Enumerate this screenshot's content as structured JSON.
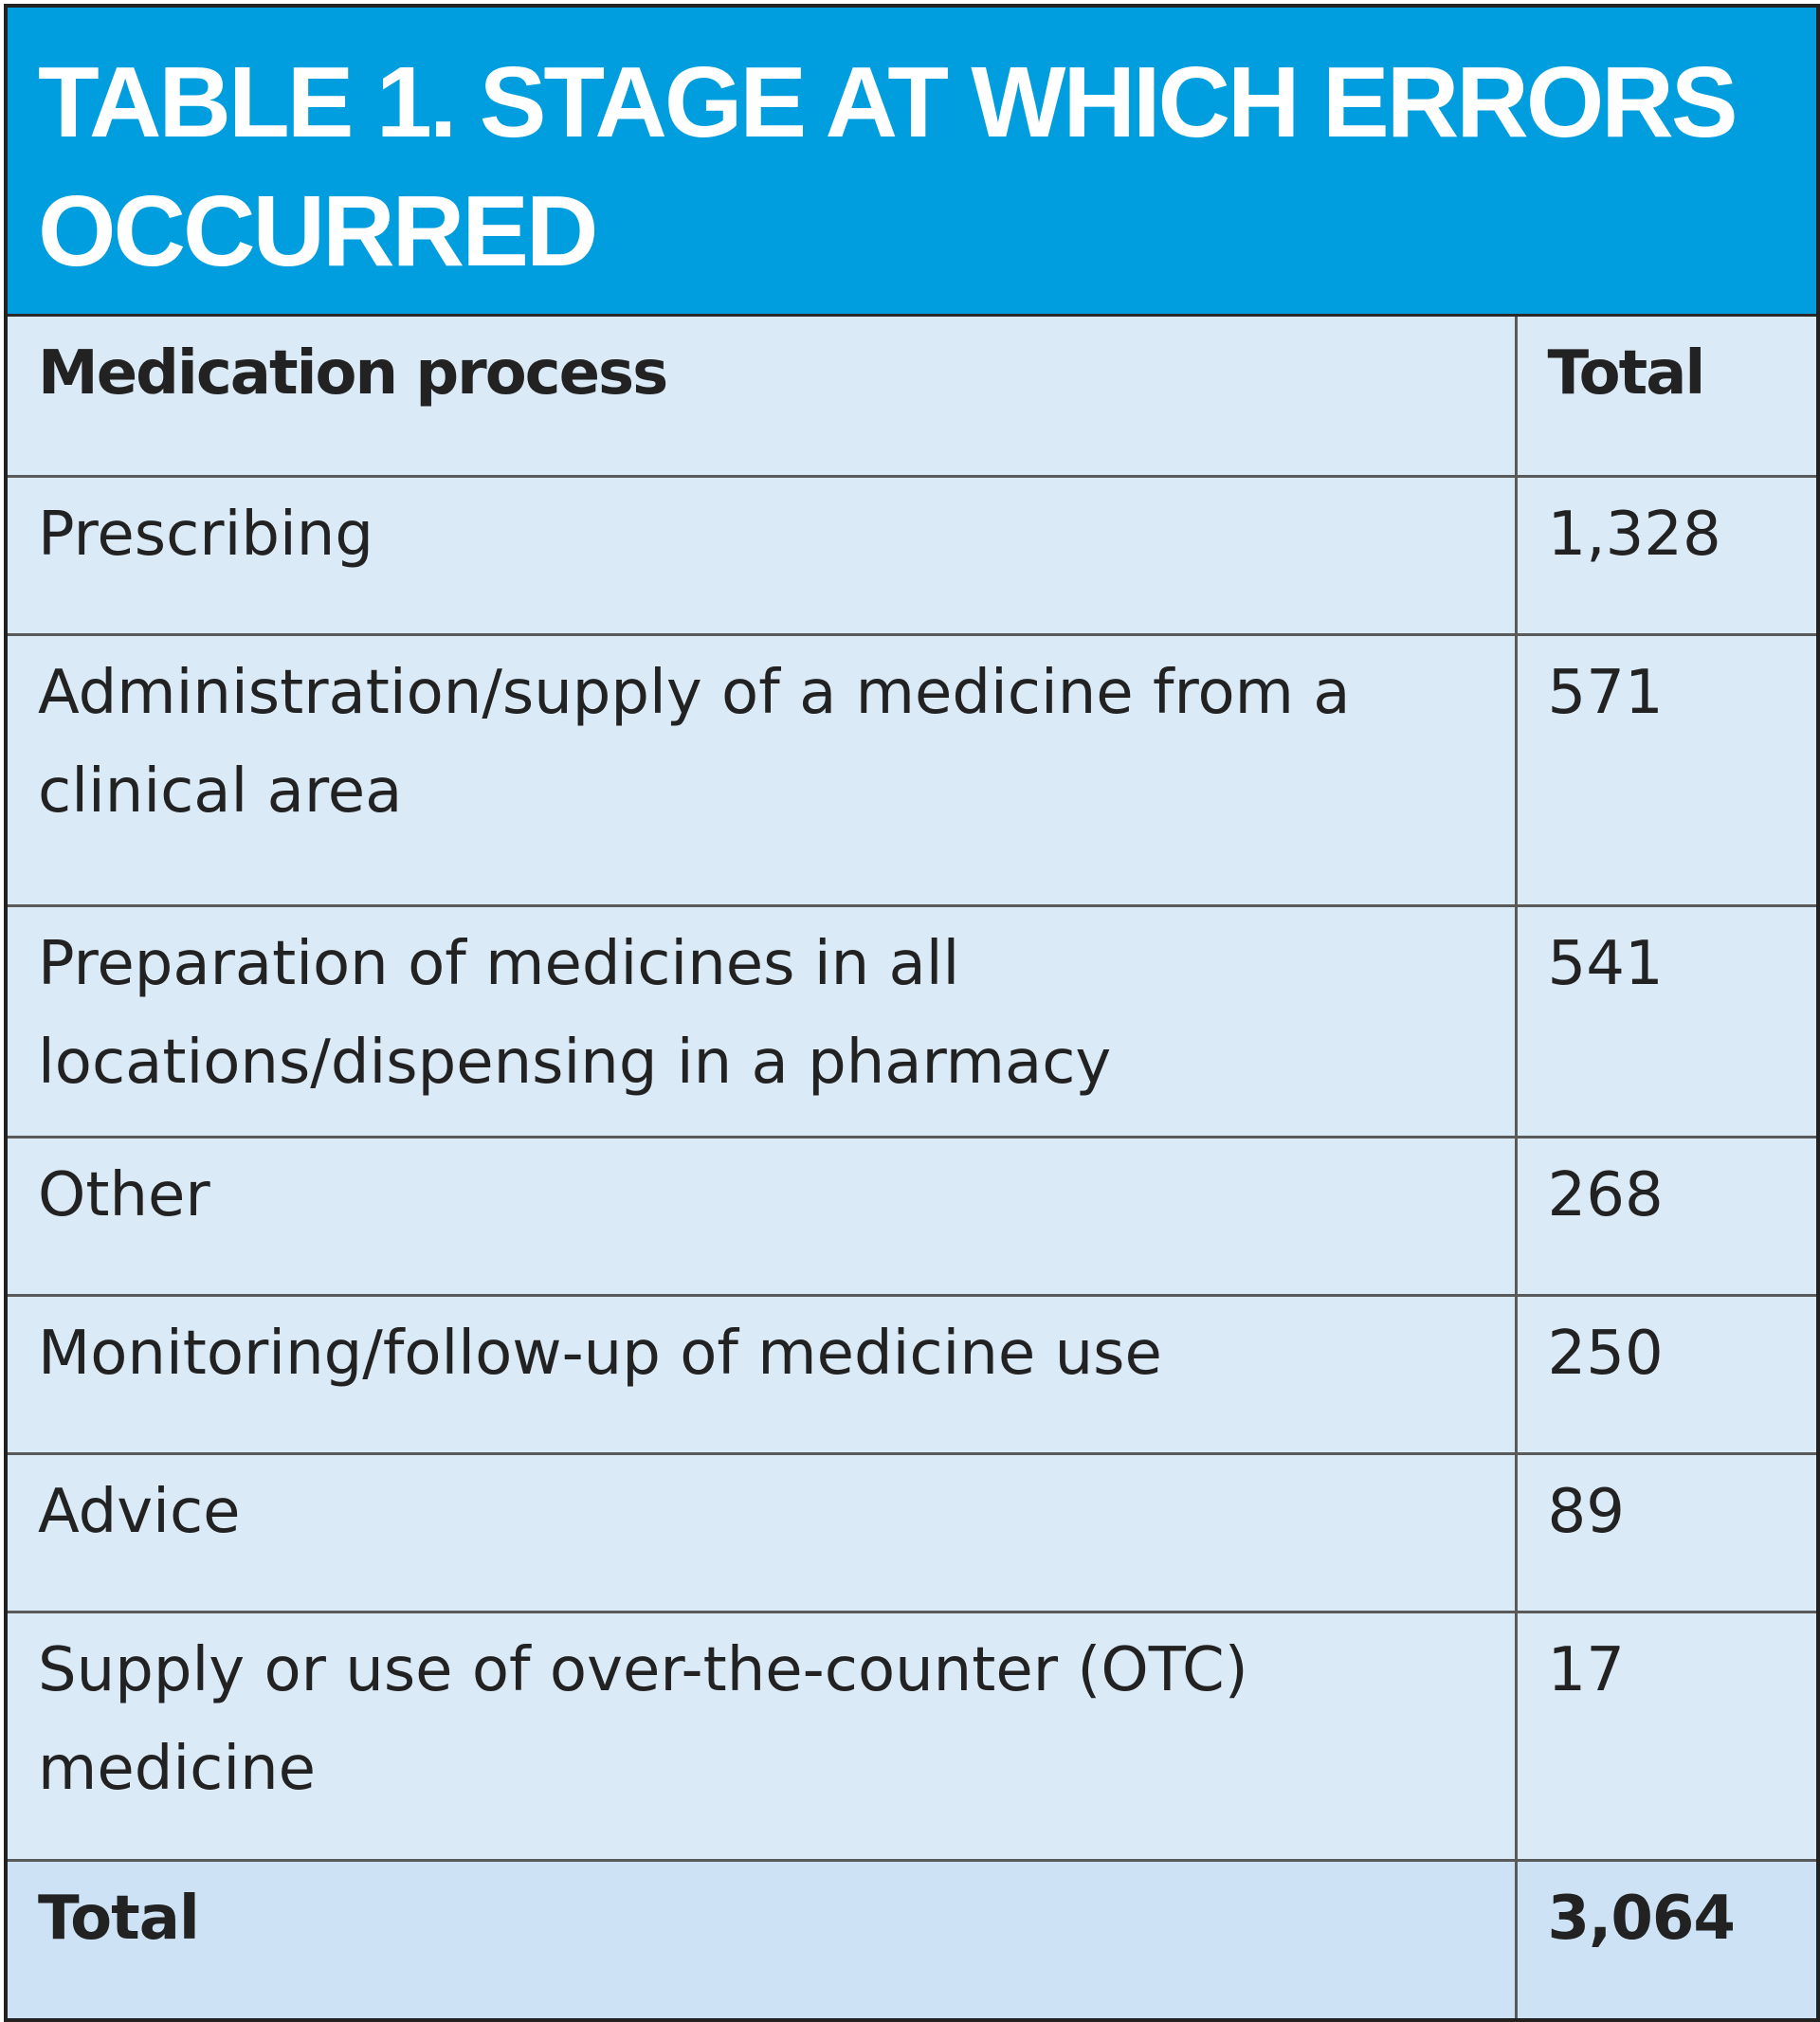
{
  "title": "TABLE 1. STAGE AT WHICH ERRORS OCCURRED",
  "table": {
    "headers": [
      "Medication process",
      "Total"
    ],
    "rows": [
      {
        "process": "Prescribing",
        "total": "1,328"
      },
      {
        "process": "Administration/supply of a medicine from a clinical area",
        "total": "571"
      },
      {
        "process": "Preparation of medicines in all locations/dispensing in a pharmacy",
        "total": "541"
      },
      {
        "process": "Other",
        "total": "268"
      },
      {
        "process": "Monitoring/follow-up of medicine use",
        "total": "250"
      },
      {
        "process": "Advice",
        "total": "89"
      },
      {
        "process": "Supply or use of over-the-counter (OTC) medicine",
        "total": "17"
      }
    ],
    "footer": {
      "label": "Total",
      "total": "3,064"
    }
  },
  "colors": {
    "header_bg": "#009ede",
    "table_bg": "#dbeaf7",
    "total_row_bg": "#cde3f5"
  }
}
